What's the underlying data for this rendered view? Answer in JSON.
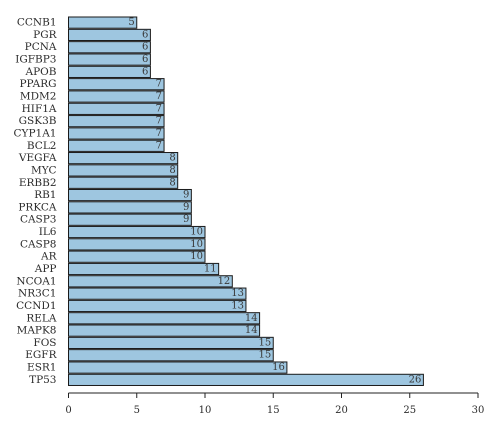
{
  "chart_data": {
    "type": "bar",
    "orientation": "horizontal",
    "categories": [
      "CCNB1",
      "PGR",
      "PCNA",
      "IGFBP3",
      "APOB",
      "PPARG",
      "MDM2",
      "HIF1A",
      "GSK3B",
      "CYP1A1",
      "BCL2",
      "VEGFA",
      "MYC",
      "ERBB2",
      "RB1",
      "PRKCA",
      "CASP3",
      "IL6",
      "CASP8",
      "AR",
      "APP",
      "NCOA1",
      "NR3C1",
      "CCND1",
      "RELA",
      "MAPK8",
      "FOS",
      "EGFR",
      "ESR1",
      "TP53"
    ],
    "values": [
      5,
      6,
      6,
      6,
      6,
      7,
      7,
      7,
      7,
      7,
      7,
      8,
      8,
      8,
      9,
      9,
      9,
      10,
      10,
      10,
      11,
      12,
      13,
      13,
      14,
      14,
      15,
      15,
      16,
      26
    ],
    "value_labels": [
      "5",
      "6",
      "6",
      "6",
      "6",
      "7",
      "7",
      "7",
      "7",
      "7",
      "7",
      "8",
      "8",
      "8",
      "9",
      "9",
      "9",
      "10",
      "10",
      "10",
      "11",
      "12",
      "13",
      "13",
      "14",
      "14",
      "15",
      "15",
      "16",
      "26"
    ],
    "title": "",
    "xlabel": "",
    "ylabel": "",
    "xlim": [
      0,
      30
    ],
    "x_ticks": [
      0,
      5,
      10,
      15,
      20,
      25,
      30
    ],
    "x_tick_labels": [
      "0",
      "5",
      "10",
      "15",
      "20",
      "25",
      "30"
    ],
    "grid": false,
    "legend": "none",
    "bar_color": "#9ec6e0",
    "bar_edge_color": "#1a1a1a"
  }
}
